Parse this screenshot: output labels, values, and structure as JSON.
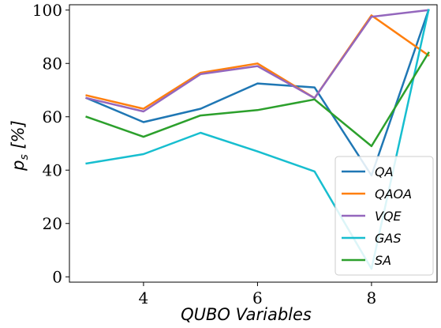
{
  "chart_data": {
    "type": "line",
    "xlabel": "QUBO Variables",
    "ylabel": "p_s [%]",
    "ylabel_main": "p",
    "ylabel_sub": "s",
    "ylabel_unit": " [%]",
    "xlim": [
      2.7,
      9.15
    ],
    "ylim": [
      -2,
      102
    ],
    "xticks": [
      4,
      6,
      8
    ],
    "yticks": [
      0,
      20,
      40,
      60,
      80,
      100
    ],
    "grid": false,
    "legend_position": "lower-right",
    "x": [
      3,
      4,
      5,
      6,
      7,
      8,
      9
    ],
    "series": [
      {
        "name": "QA",
        "color": "#1f77b4",
        "values": [
          67,
          58,
          63,
          72.5,
          71,
          38,
          100
        ]
      },
      {
        "name": "QAOA",
        "color": "#ff7f0e",
        "values": [
          68,
          63,
          76.5,
          80,
          67,
          98,
          83
        ]
      },
      {
        "name": "VQE",
        "color": "#9467bd",
        "values": [
          67,
          62,
          76,
          79,
          67,
          97.5,
          100
        ]
      },
      {
        "name": "GAS",
        "color": "#17becf",
        "values": [
          42.5,
          46,
          54,
          47,
          39.5,
          3,
          100
        ]
      },
      {
        "name": "SA",
        "color": "#2ca02c",
        "values": [
          60,
          52.5,
          60.5,
          62.5,
          66.5,
          49,
          84
        ]
      }
    ]
  }
}
